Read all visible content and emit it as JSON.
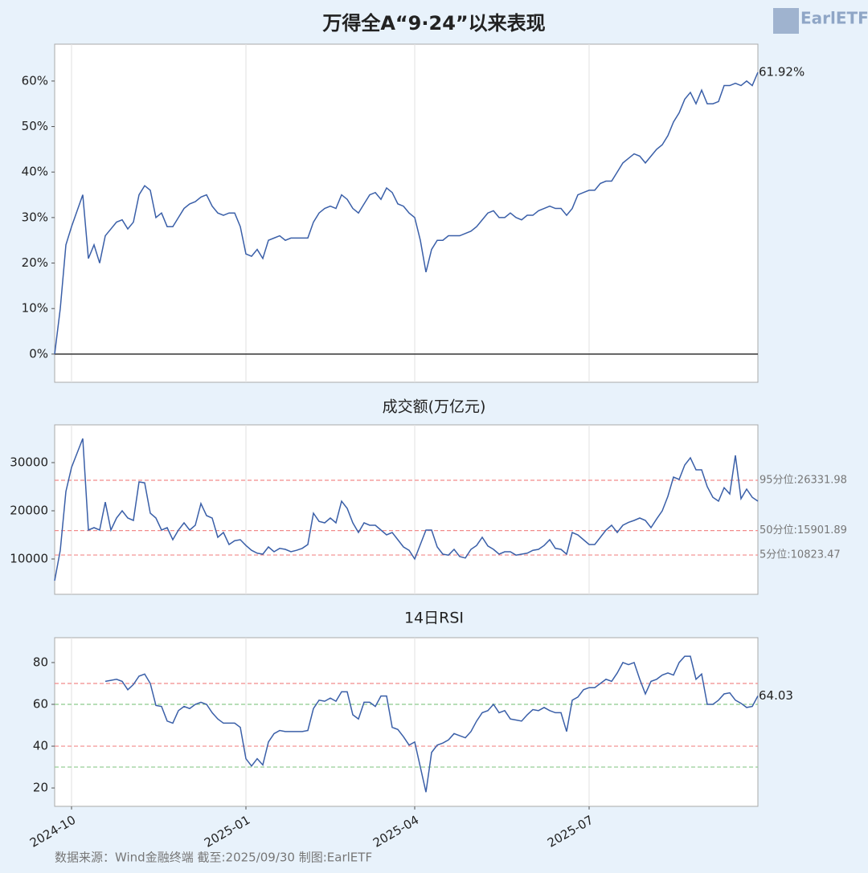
{
  "logo": "EarlETF",
  "source": "数据来源：Wind金融终端 截至:2025/09/30 制图:EarlETF",
  "chart_data": [
    {
      "type": "line",
      "title": "万得全A“9·24”以来表现",
      "color": "#3a5fa8",
      "label_last": true,
      "ylim": [
        -6.2,
        68.1
      ],
      "yticks": [
        {
          "value": 0,
          "label": "0%"
        },
        {
          "value": 10,
          "label": "10%"
        },
        {
          "value": 20,
          "label": "20%"
        },
        {
          "value": 30,
          "label": "30%"
        },
        {
          "value": 40,
          "label": "40%"
        },
        {
          "value": 50,
          "label": "50%"
        },
        {
          "value": 60,
          "label": "60%"
        }
      ],
      "reference_lines": [
        {
          "value": 0,
          "color": "#333333",
          "dash": false
        }
      ],
      "values": [
        0,
        10,
        24,
        28,
        31.5,
        35,
        21,
        24,
        20,
        26,
        27.5,
        29,
        29.5,
        27.5,
        29,
        35,
        37,
        36,
        30,
        31,
        28,
        28,
        30,
        32,
        33,
        33.5,
        34.5,
        35,
        32.5,
        31,
        30.5,
        31,
        31,
        28,
        22,
        21.5,
        23,
        21,
        25,
        25.5,
        26,
        25,
        25.5,
        25.5,
        25.5,
        25.5,
        29,
        31,
        32,
        32.5,
        32,
        35,
        34,
        32,
        31,
        33,
        35,
        35.5,
        34,
        36.5,
        35.5,
        33,
        32.5,
        31,
        30,
        25,
        18,
        23,
        25,
        25,
        26,
        26,
        26,
        26.5,
        27,
        28,
        29.5,
        31,
        31.5,
        30,
        30,
        31,
        30,
        29.5,
        30.5,
        30.5,
        31.5,
        32,
        32.5,
        32,
        32,
        30.5,
        32,
        35,
        35.5,
        36,
        36,
        37.5,
        38,
        38,
        40,
        42,
        43,
        44,
        43.5,
        42,
        43.5,
        45,
        46,
        48,
        51,
        53,
        56,
        57.5,
        55,
        58,
        55,
        55,
        55.5,
        59,
        59,
        59.5,
        59,
        60,
        59,
        61.92
      ],
      "value_labels": [
        null,
        null,
        null,
        null,
        null,
        null,
        null,
        null,
        null,
        null,
        null,
        null,
        null,
        null,
        null,
        null,
        null,
        null,
        null,
        null,
        null,
        null,
        null,
        null,
        null,
        null,
        null,
        null,
        null,
        null,
        null,
        null,
        null,
        null,
        null,
        null,
        null,
        null,
        null,
        null,
        null,
        null,
        null,
        null,
        null,
        null,
        null,
        null,
        null,
        null,
        null,
        null,
        null,
        null,
        null,
        null,
        null,
        null,
        null,
        null,
        null,
        null,
        null,
        null,
        null,
        null,
        null,
        null,
        null,
        null,
        null,
        null,
        null,
        null,
        null,
        null,
        null,
        null,
        null,
        null,
        null,
        null,
        null,
        null,
        null,
        null,
        null,
        null,
        null,
        null,
        null,
        null,
        null,
        null,
        null,
        null,
        null,
        null,
        null,
        null,
        null,
        null,
        null,
        null,
        null,
        null,
        null,
        null,
        null,
        null,
        null,
        null,
        null,
        null,
        null,
        null,
        null,
        null,
        null,
        null,
        null,
        null,
        null,
        null,
        null,
        "61.92%"
      ]
    },
    {
      "type": "line",
      "title": "成交额(万亿元)",
      "color": "#3a5fa8",
      "label_last": false,
      "ylim": [
        2667,
        37833
      ],
      "yticks": [
        10000,
        20000,
        30000
      ],
      "reference_lines": [
        {
          "value": 26331.98,
          "label": "95分位:26331.98",
          "color": "#f28b8b",
          "dash": true
        },
        {
          "value": 15901.89,
          "label": "50分位:15901.89",
          "color": "#f28b8b",
          "dash": true
        },
        {
          "value": 10823.47,
          "label": "5分位:10823.47",
          "color": "#f28b8b",
          "dash": true
        }
      ],
      "values": [
        5500,
        11800,
        24000,
        29000,
        32000,
        35000,
        16000,
        16500,
        16000,
        21800,
        16000,
        18500,
        20000,
        18500,
        18000,
        26000,
        25800,
        19500,
        18500,
        16000,
        16500,
        14000,
        16000,
        17500,
        16000,
        17000,
        21500,
        19000,
        18500,
        14500,
        15500,
        13000,
        13800,
        14000,
        12800,
        11800,
        11200,
        11000,
        12500,
        11500,
        12200,
        12000,
        11500,
        11800,
        12200,
        13000,
        19500,
        17800,
        17500,
        18500,
        17500,
        22000,
        20500,
        17500,
        15500,
        17500,
        17000,
        17000,
        16000,
        15000,
        15500,
        14000,
        12500,
        11800,
        10000,
        13000,
        16000,
        16000,
        12500,
        11000,
        10800,
        12000,
        10500,
        10200,
        12000,
        12800,
        14500,
        12700,
        12000,
        11000,
        11500,
        11500,
        10800,
        11000,
        11200,
        11800,
        12000,
        12800,
        14000,
        12200,
        12000,
        11000,
        15500,
        15000,
        14000,
        13000,
        13000,
        14500,
        16000,
        17000,
        15500,
        17000,
        17600,
        18000,
        18500,
        18000,
        16500,
        18300,
        20000,
        23000,
        27000,
        26500,
        29500,
        31000,
        28500,
        28500,
        25000,
        22800,
        22000,
        24800,
        23500,
        31500,
        22500,
        24500,
        22800,
        22000
      ]
    },
    {
      "type": "line",
      "title": "14日RSI",
      "color": "#3a5fa8",
      "label_last": true,
      "ylim": [
        11.2,
        91.9
      ],
      "yticks": [
        20,
        40,
        60,
        80
      ],
      "reference_lines": [
        {
          "value": 70,
          "color": "#f28b8b",
          "dash": true
        },
        {
          "value": 60,
          "color": "#8cc98c",
          "dash": true
        },
        {
          "value": 40,
          "color": "#f28b8b",
          "dash": true
        },
        {
          "value": 30,
          "color": "#8cc98c",
          "dash": true
        }
      ],
      "categories": [
        null,
        null,
        null,
        "2024-10",
        null,
        null,
        null,
        null,
        null,
        null,
        null,
        null,
        null,
        null,
        null,
        null,
        null,
        null,
        null,
        null,
        null,
        null,
        null,
        null,
        null,
        null,
        null,
        null,
        null,
        null,
        null,
        null,
        null,
        null,
        "2025-01",
        null,
        null,
        null,
        null,
        null,
        null,
        null,
        null,
        null,
        null,
        null,
        null,
        null,
        null,
        null,
        null,
        null,
        null,
        null,
        null,
        null,
        null,
        null,
        null,
        null,
        null,
        null,
        null,
        null,
        "2025-04",
        null,
        null,
        null,
        null,
        null,
        null,
        null,
        null,
        null,
        null,
        null,
        null,
        null,
        null,
        null,
        null,
        null,
        null,
        null,
        null,
        null,
        null,
        null,
        null,
        null,
        null,
        null,
        null,
        null,
        null,
        "2025-07",
        null,
        null,
        null,
        null,
        null,
        null,
        null,
        null,
        null,
        null,
        null,
        null,
        null,
        null,
        null,
        null,
        null,
        null,
        null,
        null,
        null,
        null,
        null,
        null,
        null,
        null,
        null,
        null,
        null,
        null
      ],
      "values": [
        null,
        null,
        null,
        null,
        null,
        null,
        null,
        null,
        null,
        71,
        71.5,
        72,
        71,
        67,
        69.5,
        73.5,
        74.5,
        70,
        59.5,
        59,
        52,
        51,
        57,
        59,
        58,
        60,
        61,
        60,
        56,
        53,
        51,
        51,
        51,
        49,
        34,
        30.5,
        34,
        31,
        42,
        46,
        47.5,
        47,
        47,
        47,
        47,
        47.5,
        58,
        62,
        61.5,
        63,
        61.5,
        66,
        66,
        55,
        53,
        61,
        61,
        59,
        64,
        64,
        49,
        48,
        44.5,
        40.5,
        42,
        30,
        18,
        37,
        40.5,
        41.5,
        43,
        46,
        45,
        44,
        47,
        52,
        56,
        57,
        60,
        56,
        57,
        53,
        52.5,
        52,
        55,
        57.5,
        57,
        58.5,
        57,
        56,
        56,
        47,
        62,
        63.5,
        67,
        68,
        68,
        70,
        72,
        71,
        75,
        80,
        79,
        80,
        72,
        65,
        71,
        72,
        74,
        75,
        74,
        80,
        83,
        83,
        72,
        74.5,
        60,
        60,
        62,
        65,
        65.5,
        62,
        60.5,
        58.5,
        59,
        64.03
      ]
    }
  ]
}
